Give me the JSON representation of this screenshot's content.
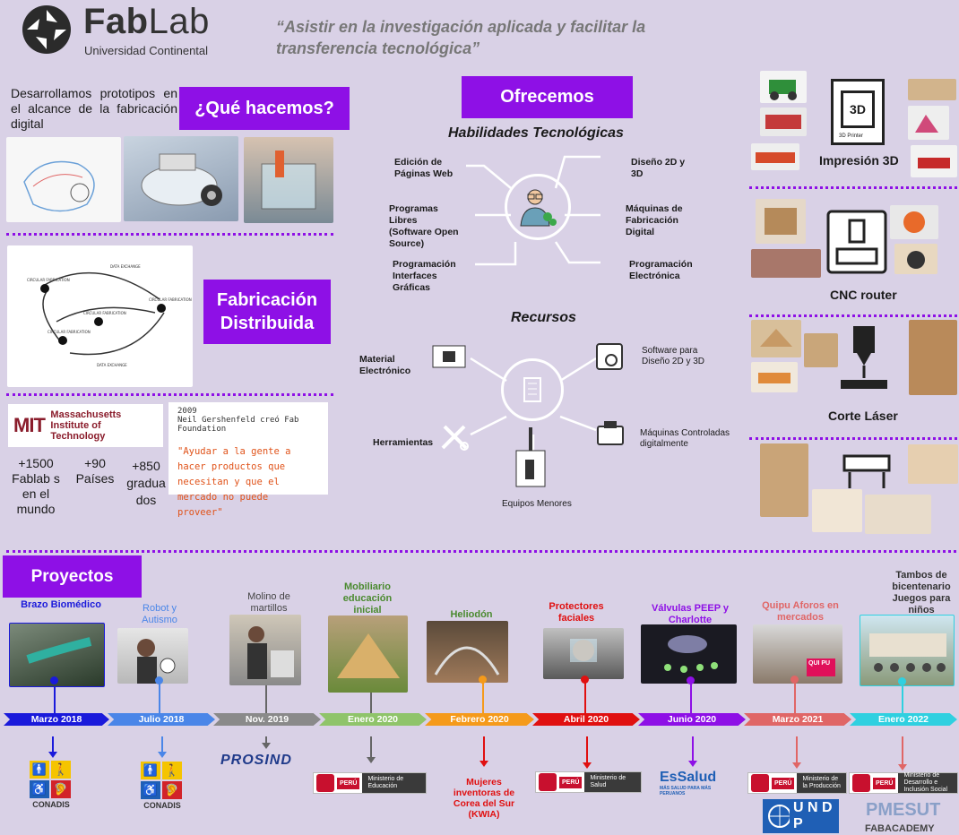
{
  "header": {
    "brand_bold": "Fab",
    "brand_thin": "Lab",
    "brand_sub": "Universidad Continental",
    "motto": "“Asistir en la investigación aplicada y facilitar la transferencia tecnológica”"
  },
  "que_hacemos": {
    "title": "¿Qué hacemos?",
    "text": "Desarrollamos prototipos en el alcance de la fabricación digital"
  },
  "fab_dist": {
    "title": "Fabricación Distribuida"
  },
  "mit": {
    "name": "Massachusetts Institute of Technology",
    "logo_letters": "MIT",
    "year": "2009",
    "founder": "Neil Gershenfeld creó Fab Foundation",
    "quote": "\"Ayudar a la gente a hacer productos que necesitan y que el mercado no puede proveer\"",
    "stats": [
      {
        "value": "+1500",
        "label": "Fablab s en el mundo"
      },
      {
        "value": "+90",
        "label": "Países"
      },
      {
        "value": "+850",
        "label": "gradua dos"
      }
    ]
  },
  "ofrecemos": {
    "title": "Ofrecemos",
    "habilidades_title": "Habilidades Tecnológicas",
    "habilidades": [
      "Edición de Páginas Web",
      "Programas Libres (Software Open Source)",
      "Programación Interfaces Gráficas",
      "Diseño 2D y 3D",
      "Máquinas de Fabricación Digital",
      "Programación Electrónica"
    ],
    "recursos_title": "Recursos",
    "recursos": [
      "Material Electrónico",
      "Herramientas",
      "Equipos Menores",
      "Software para Diseño 2D y 3D",
      "Máquinas Controladas digitalmente"
    ]
  },
  "machines": [
    {
      "label": "Impresión 3D",
      "printer_text": "3D",
      "printer_caption": "3D Printer"
    },
    {
      "label": "CNC router"
    },
    {
      "label": "Corte Láser"
    }
  ],
  "projects_title": "Proyectos",
  "projects": [
    {
      "title": "Brazo Biomédico",
      "date": "Marzo 2018",
      "color": "#1a1adb",
      "partner": "CONADIS"
    },
    {
      "title": "Robot y Autismo",
      "date": "Julio 2018",
      "color": "#4a86e8",
      "partner": "CONADIS"
    },
    {
      "title": "Molino de martillos",
      "date": "Nov.  2019",
      "color": "#8a8a8a",
      "partner": "PROSIND"
    },
    {
      "title": "Mobiliario educación inicial",
      "date": "Enero 2020",
      "color": "#6aa84f",
      "partner": "Ministerio de Educación"
    },
    {
      "title": "Heliodón",
      "date": "Febrero 2020",
      "color": "#f59a1a",
      "partner": "Mujeres inventoras de Corea del Sur (KWIA)"
    },
    {
      "title": "Protectores faciales",
      "date": "Abril 2020",
      "color": "#e01010",
      "partner": "Ministerio de Salud"
    },
    {
      "title": "Válvulas PEEP y Charlotte",
      "date": "Junio 2020",
      "color": "#8e10e6",
      "partner": "EsSalud"
    },
    {
      "title": "Quipu Aforos en mercados",
      "date": "Marzo  2021",
      "color": "#e06666",
      "partner": "Ministerio de la Producción"
    },
    {
      "title": "Tambos de bicentenario Juegos para niños",
      "date": "Enero  2022",
      "color": "#2fd0e0",
      "partner": "Ministerio de Desarrollo e Inclusión Social"
    }
  ],
  "partner_text": {
    "peru": "PERÚ",
    "essalud_sub": "MÁS SALUD PARA MÁS PERUANOS",
    "undp": "U N D P",
    "pmesut": "PMESUT",
    "fabacademy": "FABACADEMY",
    "quipu_badge": "QUI PU"
  },
  "colors": {
    "accent": "#8e10e6",
    "background": "#d9d1e6"
  }
}
